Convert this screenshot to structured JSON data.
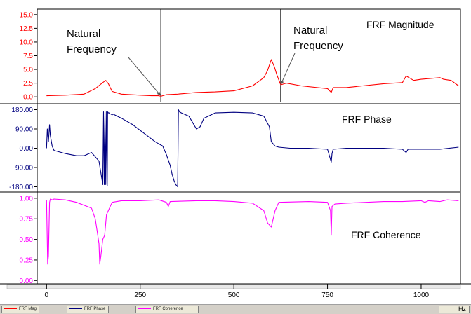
{
  "chart_data": [
    {
      "type": "line",
      "title": "",
      "xlabel": "",
      "ylabel": "",
      "xlim": [
        -25,
        1105
      ],
      "ylim": [
        -1,
        16
      ],
      "grid": true,
      "yticks": [
        "15.0",
        "12.5",
        "10.0",
        "7.5",
        "5.0",
        "2.5",
        "0.0"
      ],
      "yticks_values": [
        15,
        12.5,
        10,
        7.5,
        5,
        2.5,
        0
      ],
      "annotations": [
        {
          "text": "FRF Magnitude"
        },
        {
          "text_lines": [
            "Natural",
            "Frequency"
          ],
          "points_to": [
            305,
            0.2
          ]
        },
        {
          "text_lines": [
            "Natural",
            "Frequency"
          ],
          "points_to": [
            625,
            2.2
          ]
        }
      ],
      "vertical_markers": [
        305,
        625
      ],
      "series": [
        {
          "name": "FRF Mag",
          "color": "#ff0000",
          "x": [
            0,
            50,
            100,
            130,
            150,
            158,
            165,
            175,
            200,
            250,
            280,
            300,
            305,
            320,
            350,
            400,
            450,
            500,
            550,
            580,
            590,
            595,
            600,
            608,
            615,
            625,
            640,
            680,
            750,
            760,
            765,
            800,
            900,
            950,
            960,
            980,
            1000,
            1050,
            1060,
            1080,
            1100
          ],
          "y": [
            0.2,
            0.3,
            0.5,
            1.5,
            2.6,
            3.0,
            2.4,
            1.0,
            0.5,
            0.3,
            0.2,
            0.2,
            0.1,
            0.4,
            0.5,
            0.8,
            0.9,
            1.1,
            2.0,
            3.5,
            4.8,
            5.8,
            6.8,
            5.5,
            4.0,
            2.2,
            2.5,
            2.0,
            1.5,
            0.8,
            1.7,
            1.7,
            2.4,
            2.6,
            3.8,
            3.0,
            3.2,
            3.5,
            3.2,
            3.0,
            2.0
          ]
        }
      ]
    },
    {
      "type": "line",
      "title": "",
      "xlabel": "",
      "ylabel": "",
      "xlim": [
        -25,
        1105
      ],
      "ylim": [
        -198,
        198
      ],
      "grid": true,
      "yticks": [
        "180.00",
        "90.00",
        "0.00",
        "-90.00",
        "-180.00"
      ],
      "yticks_values": [
        180,
        90,
        0,
        -90,
        -180
      ],
      "annotations": [
        {
          "text": "FRF Phase"
        }
      ],
      "series": [
        {
          "name": "FRF Phase",
          "color": "#000080",
          "x": [
            0,
            2,
            5,
            8,
            10,
            15,
            20,
            30,
            50,
            80,
            100,
            120,
            140,
            150,
            152,
            154,
            156,
            158,
            160,
            162,
            163,
            165,
            167,
            170,
            172,
            175,
            177,
            200,
            230,
            260,
            290,
            310,
            320,
            330,
            335,
            340,
            345,
            350,
            352,
            355,
            360,
            380,
            400,
            410,
            420,
            450,
            500,
            550,
            580,
            595,
            600,
            610,
            620,
            650,
            700,
            750,
            760,
            762,
            765,
            800,
            900,
            950,
            960,
            965,
            1000,
            1050,
            1100
          ],
          "y": [
            0,
            90,
            30,
            110,
            60,
            10,
            -10,
            -15,
            -25,
            -35,
            -35,
            -20,
            -60,
            -170,
            170,
            -170,
            170,
            -170,
            170,
            -175,
            170,
            165,
            165,
            160,
            160,
            155,
            160,
            140,
            110,
            70,
            30,
            10,
            -30,
            -80,
            -120,
            -150,
            -170,
            -180,
            180,
            170,
            165,
            150,
            90,
            100,
            140,
            165,
            168,
            165,
            150,
            100,
            30,
            10,
            5,
            0,
            0,
            -5,
            -65,
            -25,
            -5,
            0,
            0,
            -5,
            -20,
            -5,
            -5,
            -5,
            5
          ]
        }
      ]
    },
    {
      "type": "line",
      "title": "",
      "xlabel": "",
      "ylabel": "",
      "xlim": [
        -25,
        1105
      ],
      "ylim": [
        -0.04,
        1.05
      ],
      "grid": true,
      "yticks": [
        "1.00",
        "0.75",
        "0.50",
        "0.25",
        "0.00"
      ],
      "yticks_values": [
        1.0,
        0.75,
        0.5,
        0.25,
        0.0
      ],
      "xticks": [
        "0",
        "250",
        "500",
        "750",
        "1000"
      ],
      "xticks_values": [
        0,
        250,
        500,
        750,
        1000
      ],
      "x_unit": "Hz",
      "annotations": [
        {
          "text": "FRF Coherence"
        }
      ],
      "series": [
        {
          "name": "FRF Coherence",
          "color": "#ff00ff",
          "x": [
            0,
            3,
            5,
            8,
            10,
            15,
            20,
            50,
            80,
            120,
            130,
            135,
            140,
            142,
            145,
            150,
            155,
            160,
            175,
            200,
            250,
            300,
            320,
            325,
            330,
            400,
            450,
            500,
            550,
            580,
            590,
            600,
            610,
            620,
            700,
            750,
            758,
            760,
            762,
            770,
            800,
            900,
            950,
            1000,
            1010,
            1020,
            1050,
            1070,
            1100
          ],
          "y": [
            0.98,
            0.2,
            0.3,
            0.95,
            0.99,
            0.98,
            0.99,
            0.98,
            0.95,
            0.88,
            0.75,
            0.6,
            0.45,
            0.2,
            0.3,
            0.5,
            0.55,
            0.8,
            0.95,
            0.97,
            0.97,
            0.98,
            0.95,
            0.9,
            0.96,
            0.97,
            0.97,
            0.96,
            0.94,
            0.85,
            0.7,
            0.65,
            0.85,
            0.95,
            0.96,
            0.95,
            0.85,
            0.55,
            0.9,
            0.93,
            0.94,
            0.96,
            0.96,
            0.97,
            0.95,
            0.97,
            0.96,
            0.98,
            0.97
          ]
        }
      ]
    }
  ],
  "status_bar": {
    "legend": [
      {
        "label": "FRF Mag",
        "color": "#ff0000"
      },
      {
        "label": "FRF Phase",
        "color": "#000080"
      },
      {
        "label": "FRF Coherence",
        "color": "#ff00ff"
      }
    ],
    "unit": "Hz"
  }
}
